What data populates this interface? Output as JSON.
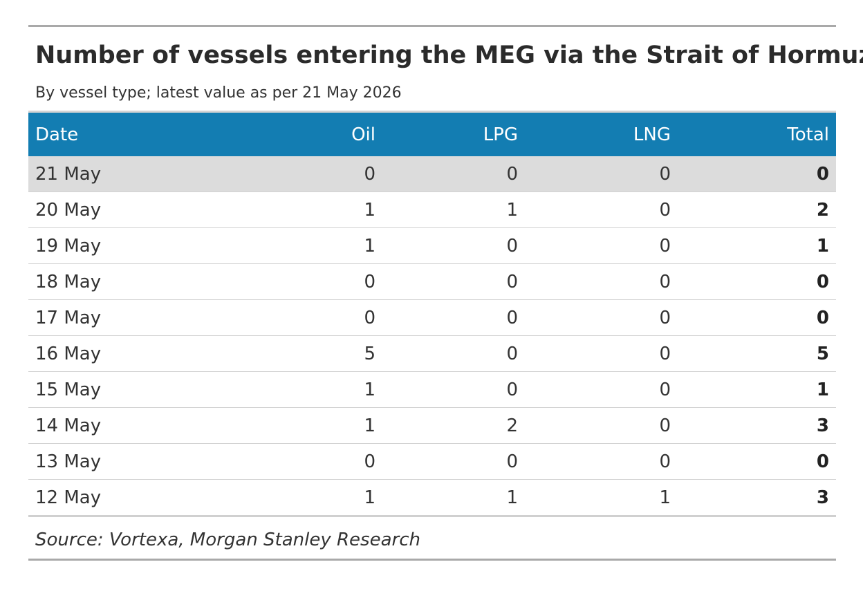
{
  "title": "Number of vessels entering the MEG via the Strait of Hormuz",
  "subtitle": "By vessel type; latest value as per 21 May 2026",
  "source": "Source: Vortexa, Morgan Stanley Research",
  "colors": {
    "header_bg": "#137db2",
    "highlight_row": "#dcdcdc",
    "rule": "#a9a9a9"
  },
  "chart_data": {
    "type": "table",
    "columns": [
      "Date",
      "Oil",
      "LPG",
      "LNG",
      "Total"
    ],
    "highlighted_row": "21 May",
    "rows": [
      [
        "21 May",
        "0",
        "0",
        "0",
        "0"
      ],
      [
        "20 May",
        "1",
        "1",
        "0",
        "2"
      ],
      [
        "19 May",
        "1",
        "0",
        "0",
        "1"
      ],
      [
        "18 May",
        "0",
        "0",
        "0",
        "0"
      ],
      [
        "17 May",
        "0",
        "0",
        "0",
        "0"
      ],
      [
        "16 May",
        "5",
        "0",
        "0",
        "5"
      ],
      [
        "15 May",
        "1",
        "0",
        "0",
        "1"
      ],
      [
        "14 May",
        "1",
        "2",
        "0",
        "3"
      ],
      [
        "13 May",
        "0",
        "0",
        "0",
        "0"
      ],
      [
        "12 May",
        "1",
        "1",
        "1",
        "3"
      ]
    ]
  }
}
